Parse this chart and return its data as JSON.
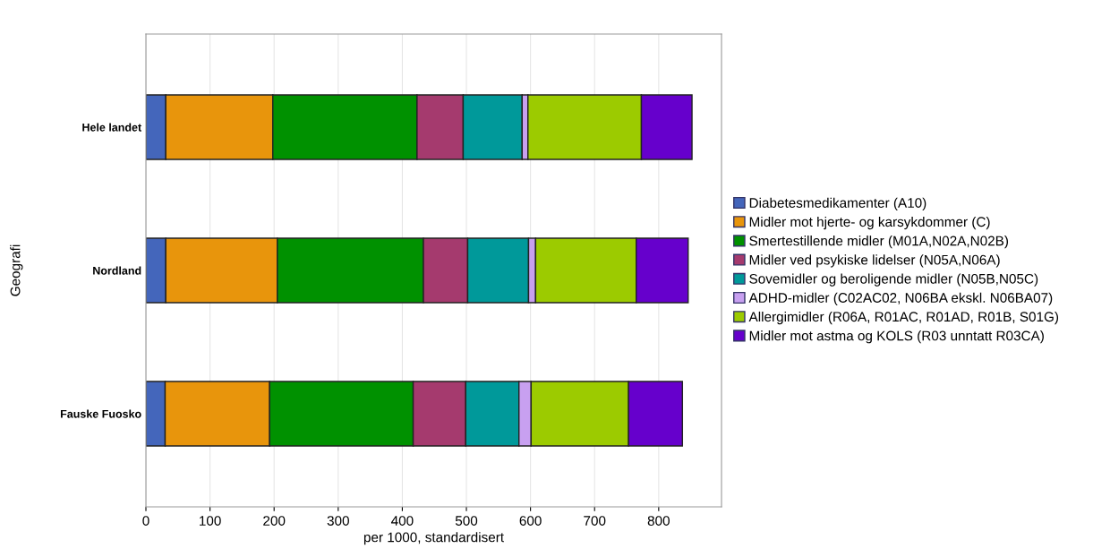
{
  "chart_data": {
    "type": "bar",
    "orientation": "horizontal",
    "stacked": true,
    "xlabel": "per 1000, standardisert",
    "ylabel": "Geografi",
    "categories": [
      "Hele landet",
      "Nordland",
      "Fauske Fuosko"
    ],
    "series": [
      {
        "name": "Diabetesmedikamenter (A10)",
        "color": "#4466bb",
        "values": [
          31,
          31,
          30
        ]
      },
      {
        "name": "Midler mot hjerte- og karsykdommer (C)",
        "color": "#e8950c",
        "values": [
          167,
          174,
          163
        ]
      },
      {
        "name": "Smertestillende midler (M01A,N02A,N02B)",
        "color": "#009100",
        "values": [
          225,
          228,
          224
        ]
      },
      {
        "name": "Midler ved psykiske lidelser (N05A,N06A)",
        "color": "#a53a6e",
        "values": [
          72,
          69,
          82
        ]
      },
      {
        "name": "Sovemidler og beroligende midler (N05B,N05C)",
        "color": "#00999a",
        "values": [
          92,
          95,
          83
        ]
      },
      {
        "name": "ADHD-midler (C02AC02, N06BA ekskl. N06BA07)",
        "color": "#c8a0f0",
        "values": [
          9,
          11,
          19
        ]
      },
      {
        "name": "Allergimidler (R06A, R01AC, R01AD, R01B, S01G)",
        "color": "#9ccb00",
        "values": [
          177,
          157,
          152
        ]
      },
      {
        "name": "Midler mot astma og KOLS (R03 unntatt R03CA)",
        "color": "#6600cc",
        "values": [
          79,
          81,
          84
        ]
      }
    ],
    "xlim": [
      0,
      898
    ],
    "xticks": [
      0,
      100,
      200,
      300,
      400,
      500,
      600,
      700,
      800
    ],
    "grid": "x",
    "legend": "right"
  }
}
